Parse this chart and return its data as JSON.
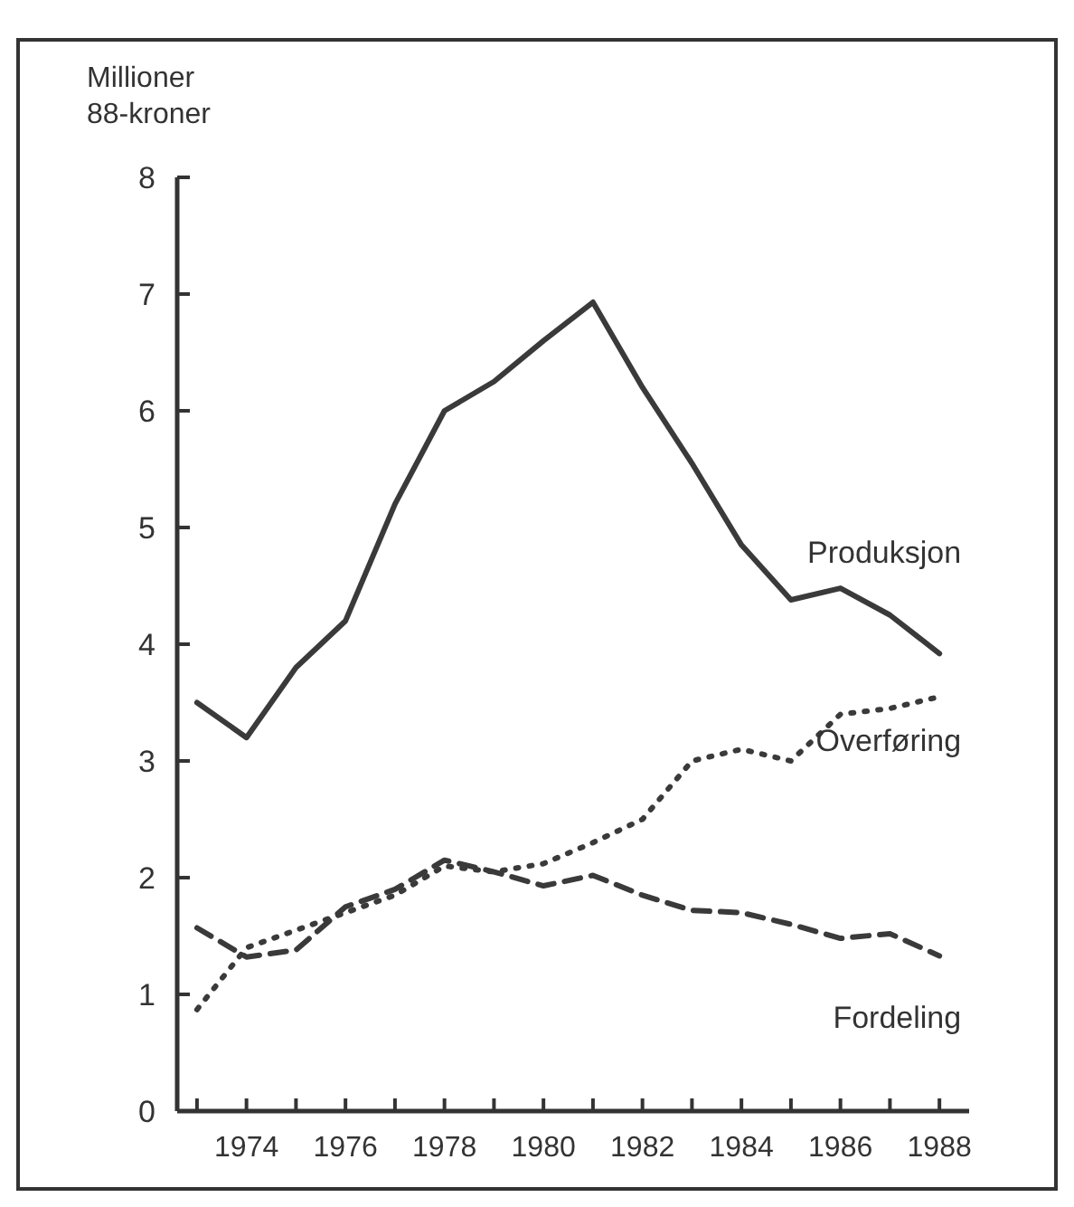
{
  "chart_data": {
    "type": "line",
    "ylabel": "Millioner\n88-kroner",
    "x": [
      1973,
      1974,
      1975,
      1976,
      1977,
      1978,
      1979,
      1980,
      1981,
      1982,
      1983,
      1984,
      1985,
      1986,
      1987,
      1988
    ],
    "xlim": [
      1972.6,
      1988.6
    ],
    "xticks": [
      {
        "value": 1973,
        "label": null
      },
      1974,
      {
        "value": 1975,
        "label": null
      },
      1976,
      {
        "value": 1977,
        "label": null
      },
      1978,
      {
        "value": 1979,
        "label": null
      },
      1980,
      {
        "value": 1981,
        "label": null
      },
      1982,
      {
        "value": 1983,
        "label": null
      },
      1984,
      {
        "value": 1985,
        "label": null
      },
      1986,
      {
        "value": 1987,
        "label": null
      },
      1988
    ],
    "ylim": [
      0,
      8
    ],
    "yticks": [
      0,
      1,
      2,
      3,
      4,
      5,
      6,
      7,
      8
    ],
    "grid": false,
    "legend": false,
    "series": [
      {
        "name": "Produksjon",
        "color": "#3a3a3a",
        "line_style": "solid",
        "values": [
          3.5,
          3.2,
          3.8,
          4.2,
          5.2,
          6.0,
          6.25,
          6.6,
          6.93,
          6.2,
          5.55,
          4.85,
          4.38,
          4.48,
          4.25,
          3.92
        ]
      },
      {
        "name": "Overføring",
        "color": "#3a3a3a",
        "line_style": "dotted",
        "values": [
          0.87,
          1.4,
          1.55,
          1.7,
          1.85,
          2.1,
          2.05,
          2.12,
          2.3,
          2.5,
          3.0,
          3.1,
          3.0,
          3.4,
          3.45,
          3.55
        ]
      },
      {
        "name": "Fordeling",
        "color": "#3a3a3a",
        "line_style": "dashed",
        "values": [
          1.57,
          1.32,
          1.38,
          1.75,
          1.9,
          2.15,
          2.05,
          1.93,
          2.02,
          1.85,
          1.72,
          1.7,
          1.6,
          1.48,
          1.52,
          1.33
        ]
      }
    ]
  }
}
